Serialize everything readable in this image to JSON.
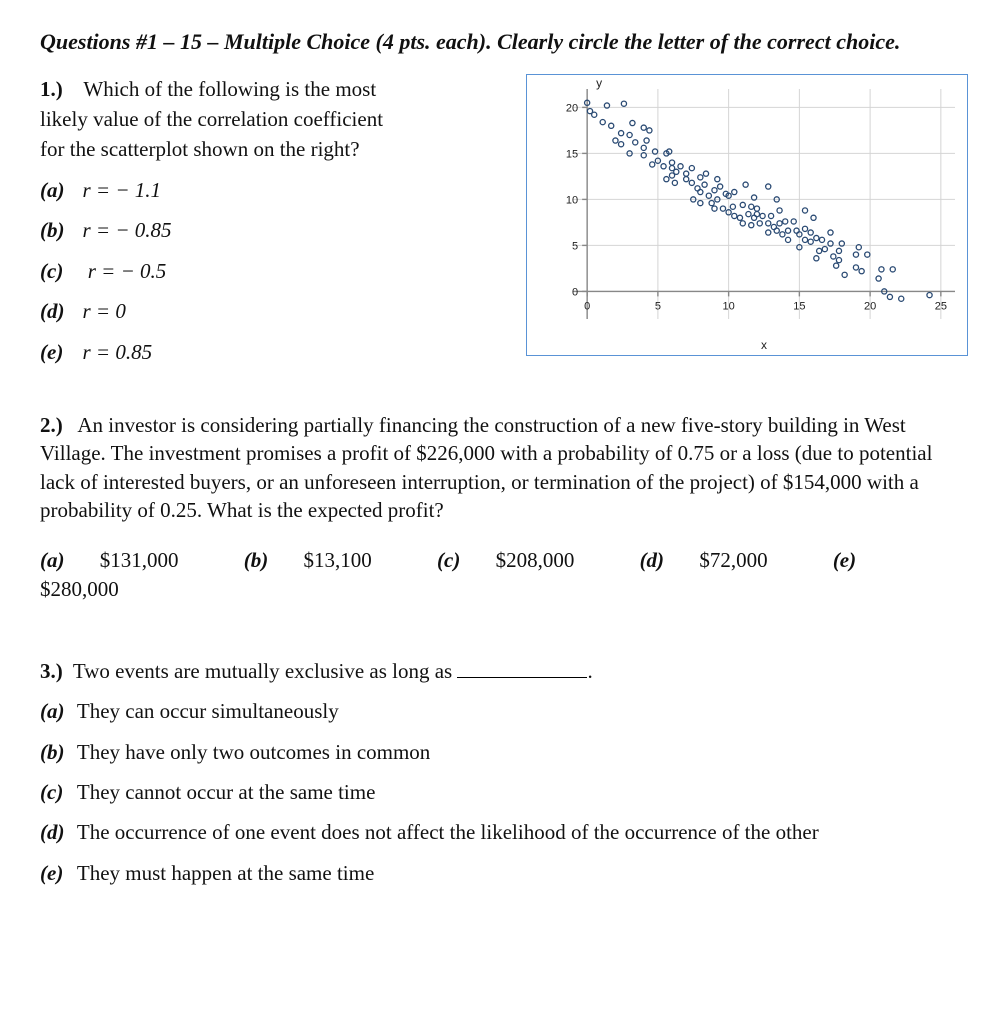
{
  "header": "Questions #1 – 15 – Multiple Choice (4 pts. each). Clearly circle the letter of the correct choice.",
  "q1": {
    "num": "1.)",
    "stem_line1": "Which of the following is the most",
    "stem_line2": "likely value of the correlation coefficient",
    "stem_line3": "for the scatterplot shown on the right?",
    "choices": {
      "a": "r = − 1.1",
      "b": "r = − 0.85",
      "c": "r = − 0.5",
      "d": "r = 0",
      "e": "r =  0.85"
    }
  },
  "chart": {
    "type": "scatter",
    "xlabel": "x",
    "ylabel": "y",
    "xlim": [
      -1,
      26
    ],
    "ylim": [
      -3,
      22
    ],
    "xticks": [
      0,
      5,
      10,
      15,
      20,
      25
    ],
    "yticks": [
      0,
      5,
      10,
      15,
      20
    ],
    "tick_fontsize": 11,
    "label_fontsize": 12,
    "marker": "circle-open",
    "marker_radius": 2.6,
    "marker_color": "#2a4a73",
    "grid_color": "#d4d4d4",
    "axis_color": "#888888",
    "background_color": "#ffffff",
    "points": [
      [
        0,
        20.5
      ],
      [
        0.2,
        19.6
      ],
      [
        0.5,
        19.2
      ],
      [
        1.4,
        20.2
      ],
      [
        2.6,
        20.4
      ],
      [
        1.1,
        18.4
      ],
      [
        1.7,
        18.0
      ],
      [
        2.4,
        17.2
      ],
      [
        3.2,
        18.3
      ],
      [
        3.0,
        17.0
      ],
      [
        4.0,
        17.8
      ],
      [
        4.4,
        17.5
      ],
      [
        2.0,
        16.4
      ],
      [
        2.4,
        16.0
      ],
      [
        3.4,
        16.2
      ],
      [
        4.0,
        15.6
      ],
      [
        4.2,
        16.4
      ],
      [
        4.8,
        15.2
      ],
      [
        3.0,
        15.0
      ],
      [
        4.0,
        14.8
      ],
      [
        5.6,
        15.0
      ],
      [
        5.0,
        14.2
      ],
      [
        5.4,
        13.6
      ],
      [
        6.0,
        14.0
      ],
      [
        5.8,
        15.2
      ],
      [
        4.6,
        13.8
      ],
      [
        6.0,
        13.4
      ],
      [
        6.3,
        13.0
      ],
      [
        6.0,
        12.6
      ],
      [
        6.6,
        13.6
      ],
      [
        7.0,
        12.8
      ],
      [
        7.4,
        13.4
      ],
      [
        5.6,
        12.2
      ],
      [
        6.2,
        11.8
      ],
      [
        7.0,
        12.2
      ],
      [
        7.4,
        11.8
      ],
      [
        8.0,
        12.4
      ],
      [
        8.4,
        12.8
      ],
      [
        9.2,
        12.2
      ],
      [
        7.8,
        11.2
      ],
      [
        8.3,
        11.6
      ],
      [
        8.0,
        10.8
      ],
      [
        8.6,
        10.4
      ],
      [
        9.0,
        11.0
      ],
      [
        9.4,
        11.4
      ],
      [
        9.8,
        10.6
      ],
      [
        7.5,
        10.0
      ],
      [
        8.0,
        9.6
      ],
      [
        8.8,
        9.6
      ],
      [
        9.2,
        10.0
      ],
      [
        10.0,
        10.4
      ],
      [
        10.4,
        10.8
      ],
      [
        11.2,
        11.6
      ],
      [
        12.8,
        11.4
      ],
      [
        9.0,
        9.0
      ],
      [
        9.6,
        9.0
      ],
      [
        10.3,
        9.2
      ],
      [
        10.0,
        8.6
      ],
      [
        11.0,
        9.4
      ],
      [
        11.6,
        9.2
      ],
      [
        12.0,
        9.0
      ],
      [
        11.8,
        10.2
      ],
      [
        13.4,
        10.0
      ],
      [
        10.4,
        8.2
      ],
      [
        10.8,
        8.0
      ],
      [
        11.4,
        8.4
      ],
      [
        11.8,
        8.0
      ],
      [
        12.0,
        8.4
      ],
      [
        12.4,
        8.2
      ],
      [
        13.0,
        8.2
      ],
      [
        13.6,
        8.8
      ],
      [
        15.4,
        8.8
      ],
      [
        11.0,
        7.4
      ],
      [
        11.6,
        7.2
      ],
      [
        12.2,
        7.4
      ],
      [
        12.8,
        7.4
      ],
      [
        13.2,
        7.0
      ],
      [
        13.6,
        7.4
      ],
      [
        14.0,
        7.6
      ],
      [
        14.6,
        7.6
      ],
      [
        16.0,
        8.0
      ],
      [
        12.8,
        6.4
      ],
      [
        13.4,
        6.6
      ],
      [
        13.8,
        6.2
      ],
      [
        14.2,
        6.6
      ],
      [
        14.8,
        6.6
      ],
      [
        15.0,
        6.2
      ],
      [
        15.4,
        6.8
      ],
      [
        15.8,
        6.4
      ],
      [
        17.2,
        6.4
      ],
      [
        14.2,
        5.6
      ],
      [
        15.4,
        5.6
      ],
      [
        15.8,
        5.4
      ],
      [
        16.2,
        5.8
      ],
      [
        16.6,
        5.6
      ],
      [
        17.2,
        5.2
      ],
      [
        15.0,
        4.8
      ],
      [
        16.4,
        4.4
      ],
      [
        16.8,
        4.6
      ],
      [
        18.0,
        5.2
      ],
      [
        17.8,
        4.4
      ],
      [
        19.2,
        4.8
      ],
      [
        16.2,
        3.6
      ],
      [
        17.4,
        3.8
      ],
      [
        17.8,
        3.4
      ],
      [
        19.0,
        4.0
      ],
      [
        19.8,
        4.0
      ],
      [
        17.6,
        2.8
      ],
      [
        19.0,
        2.6
      ],
      [
        19.4,
        2.2
      ],
      [
        20.8,
        2.4
      ],
      [
        21.6,
        2.4
      ],
      [
        18.2,
        1.8
      ],
      [
        20.6,
        1.4
      ],
      [
        21.0,
        0.0
      ],
      [
        21.4,
        -0.6
      ],
      [
        22.2,
        -0.8
      ],
      [
        24.2,
        -0.4
      ]
    ]
  },
  "q2": {
    "num": "2.)",
    "stem": "An investor is considering partially financing the construction of a new five-story building in West Village.  The investment promises a profit of $226,000 with a probability of 0.75 or a loss (due to potential lack of interested buyers, or an unforeseen interruption, or termination of the project) of $154,000 with a probability of 0.25. What is the expected profit?",
    "choices": {
      "a": "$131,000",
      "b": "$13,100",
      "c": "$208,000",
      "d": "$72,000",
      "e": "$280,000"
    }
  },
  "q3": {
    "num": "3.)",
    "stem_prefix": "Two events are mutually exclusive as long as ",
    "stem_suffix": ".",
    "choices": {
      "a": "They can occur simultaneously",
      "b": "They have only two outcomes in common",
      "c": "They cannot occur at the same time",
      "d": "The occurrence of one event does not affect the likelihood of the occurrence of the other",
      "e": "They must happen at the same time"
    }
  }
}
